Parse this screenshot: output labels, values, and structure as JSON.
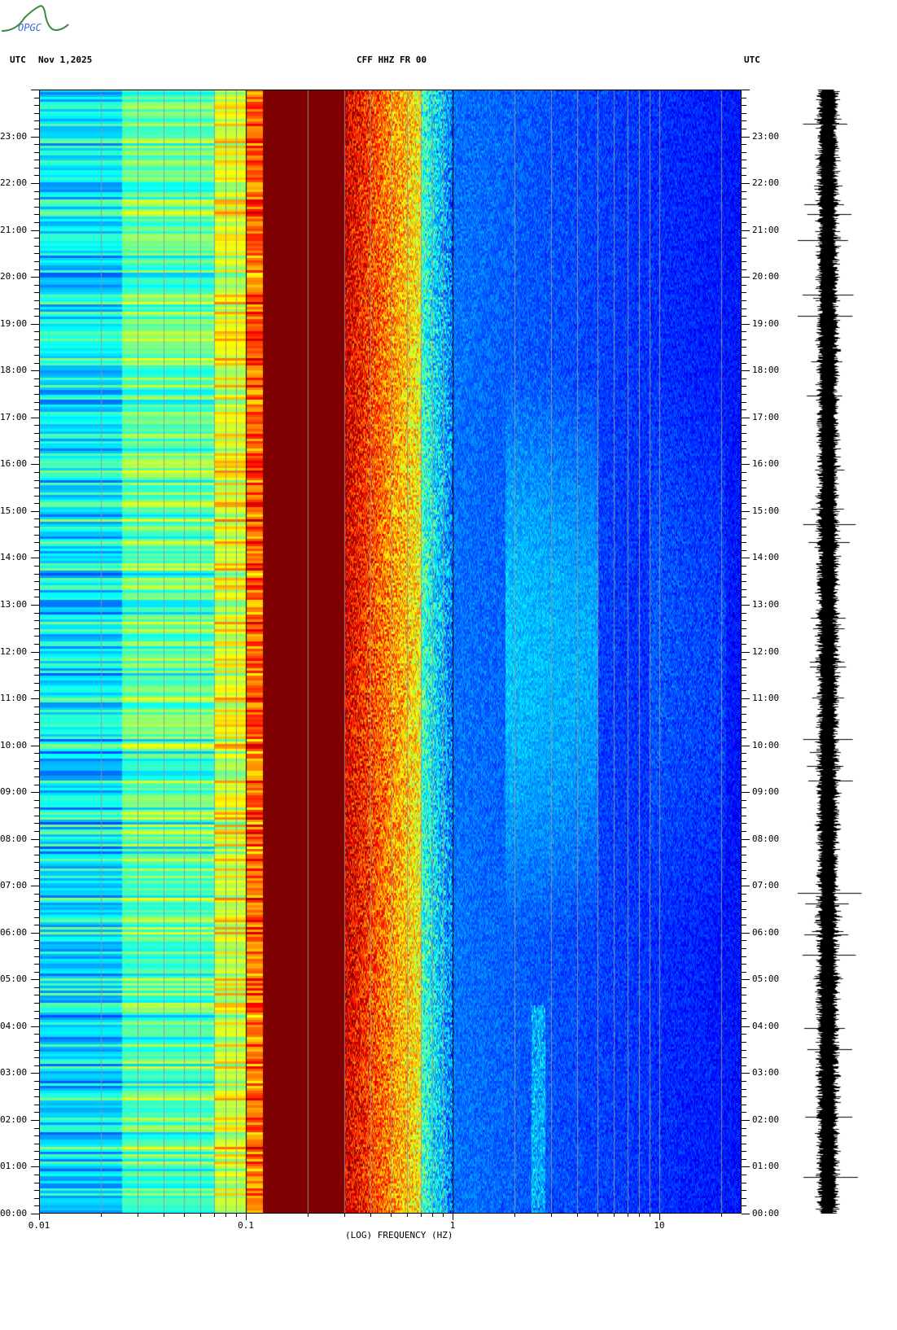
{
  "header": {
    "logo_text": "OPGC",
    "left_label": "UTC",
    "date": "Nov 1,2025",
    "station": "CFF HHZ FR 00",
    "right_label": "UTC"
  },
  "chart_data": {
    "type": "heatmap",
    "xlabel": "(LOG) FREQUENCY (HZ)",
    "x_scale": "log",
    "xlim": [
      0.01,
      25
    ],
    "x_ticks": [
      {
        "value": 0.01,
        "label": "0.01"
      },
      {
        "value": 0.1,
        "label": "0.1"
      },
      {
        "value": 1,
        "label": "1"
      },
      {
        "value": 10,
        "label": "10"
      }
    ],
    "ylim_hours": [
      0,
      24
    ],
    "y_ticks": [
      "00:00",
      "01:00",
      "02:00",
      "03:00",
      "04:00",
      "05:00",
      "06:00",
      "07:00",
      "08:00",
      "09:00",
      "10:00",
      "11:00",
      "12:00",
      "13:00",
      "14:00",
      "15:00",
      "16:00",
      "17:00",
      "18:00",
      "19:00",
      "20:00",
      "21:00",
      "22:00",
      "23:00"
    ],
    "colormap": "jet",
    "grid": true,
    "bands": [
      {
        "from_hz": 0.01,
        "to_hz": 0.025,
        "color": "cyan"
      },
      {
        "from_hz": 0.025,
        "to_hz": 0.07,
        "color": "cyan-yellow"
      },
      {
        "from_hz": 0.07,
        "to_hz": 0.1,
        "color": "yellow"
      },
      {
        "from_hz": 0.1,
        "to_hz": 0.12,
        "color": "orange-red"
      },
      {
        "from_hz": 0.12,
        "to_hz": 0.3,
        "color": "dark red"
      },
      {
        "from_hz": 0.3,
        "to_hz": 0.7,
        "color": "red-yellow"
      },
      {
        "from_hz": 0.7,
        "to_hz": 1,
        "color": "cyan"
      },
      {
        "from_hz": 1,
        "to_hz": 25,
        "color": "blue"
      }
    ]
  }
}
